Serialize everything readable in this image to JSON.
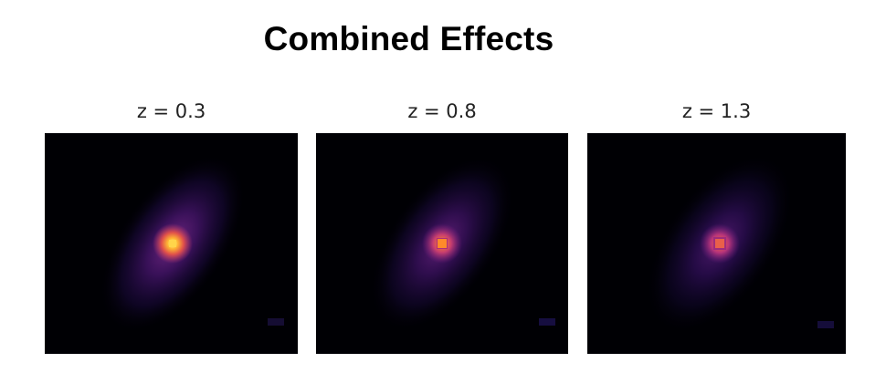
{
  "title": "Combined Effects",
  "panels": [
    {
      "label": "z = 0.3",
      "redshift": 0.3,
      "core_color": "#ffb833",
      "halo_opacity": 0.85,
      "pixelation": "fine"
    },
    {
      "label": "z = 0.8",
      "redshift": 0.8,
      "core_color": "#ff8a2a",
      "halo_opacity": 0.7,
      "pixelation": "medium"
    },
    {
      "label": "z = 1.3",
      "redshift": 1.3,
      "core_color": "#f2683a",
      "halo_opacity": 0.6,
      "pixelation": "coarse"
    }
  ],
  "colormap": {
    "background": "#000004",
    "dark_purple": "#1b0c41",
    "purple": "#51127c",
    "magenta": "#b6377a",
    "orange": "#fb8861",
    "yellow": "#fcfdbf"
  }
}
